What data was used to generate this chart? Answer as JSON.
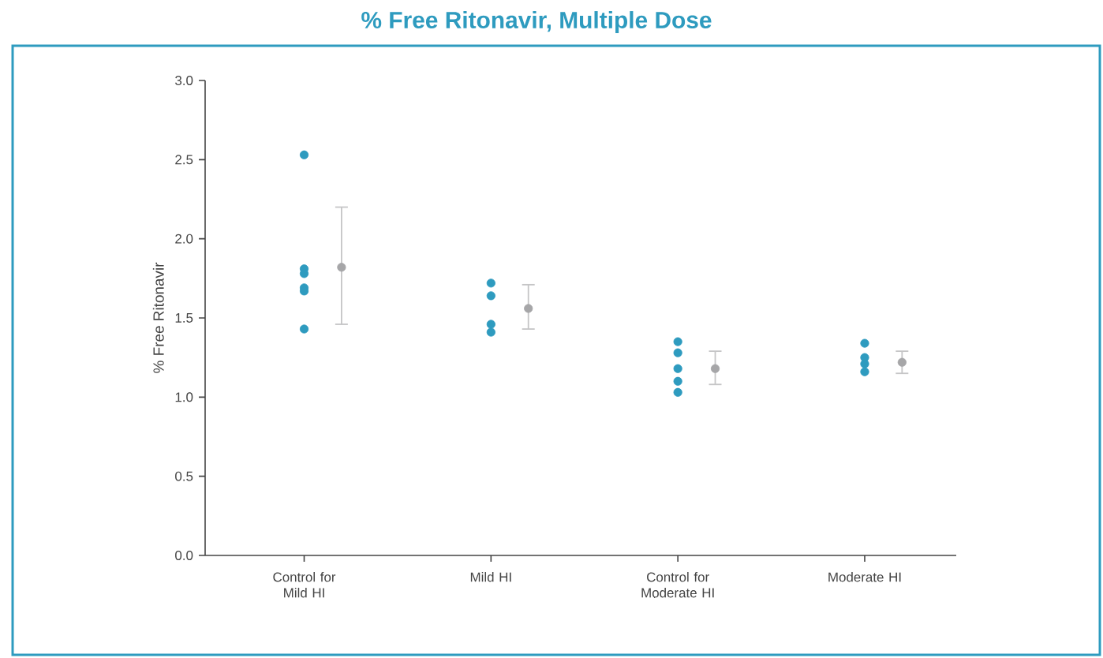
{
  "chart_data": {
    "type": "scatter",
    "title": "% Free Ritonavir, Multiple Dose",
    "ylabel": "% Free Ritonavir",
    "categories": [
      "Control for Mild HI",
      "Mild HI",
      "Control for Moderate HI",
      "Moderate HI"
    ],
    "ylim": [
      0,
      3
    ],
    "yticks": [
      {
        "value": 0,
        "label": "0.0"
      },
      {
        "value": 0.5,
        "label": "0.5"
      },
      {
        "value": 1,
        "label": "1.0"
      },
      {
        "value": 1.5,
        "label": "1.5"
      },
      {
        "value": 2,
        "label": "2.0"
      },
      {
        "value": 2.5,
        "label": "2.5"
      },
      {
        "value": 3,
        "label": "3.0"
      }
    ],
    "marker": "circle",
    "series": [
      {
        "color": "#2e9bbf",
        "x": [
          "Control for Mild HI",
          "Control for Mild HI",
          "Control for Mild HI",
          "Control for Mild HI",
          "Control for Mild HI",
          "Control for Mild HI",
          "Mild HI",
          "Mild HI",
          "Mild HI",
          "Mild HI",
          "Control for Moderate HI",
          "Control for Moderate HI",
          "Control for Moderate HI",
          "Control for Moderate HI",
          "Control for Moderate HI",
          "Moderate HI",
          "Moderate HI",
          "Moderate HI",
          "Moderate HI"
        ],
        "values": [
          2.53,
          1.81,
          1.78,
          1.69,
          1.67,
          1.43,
          1.72,
          1.64,
          1.46,
          1.41,
          1.35,
          1.28,
          1.18,
          1.1,
          1.03,
          1.34,
          1.25,
          1.21,
          1.16
        ]
      },
      {
        "color": "#a6a6a8",
        "values": [
          1.82,
          1.56,
          1.18,
          1.22
        ],
        "errors": [
          [
            1.46,
            2.2
          ],
          [
            1.43,
            1.71
          ],
          [
            1.08,
            1.29
          ],
          [
            1.15,
            1.29
          ]
        ]
      }
    ]
  }
}
